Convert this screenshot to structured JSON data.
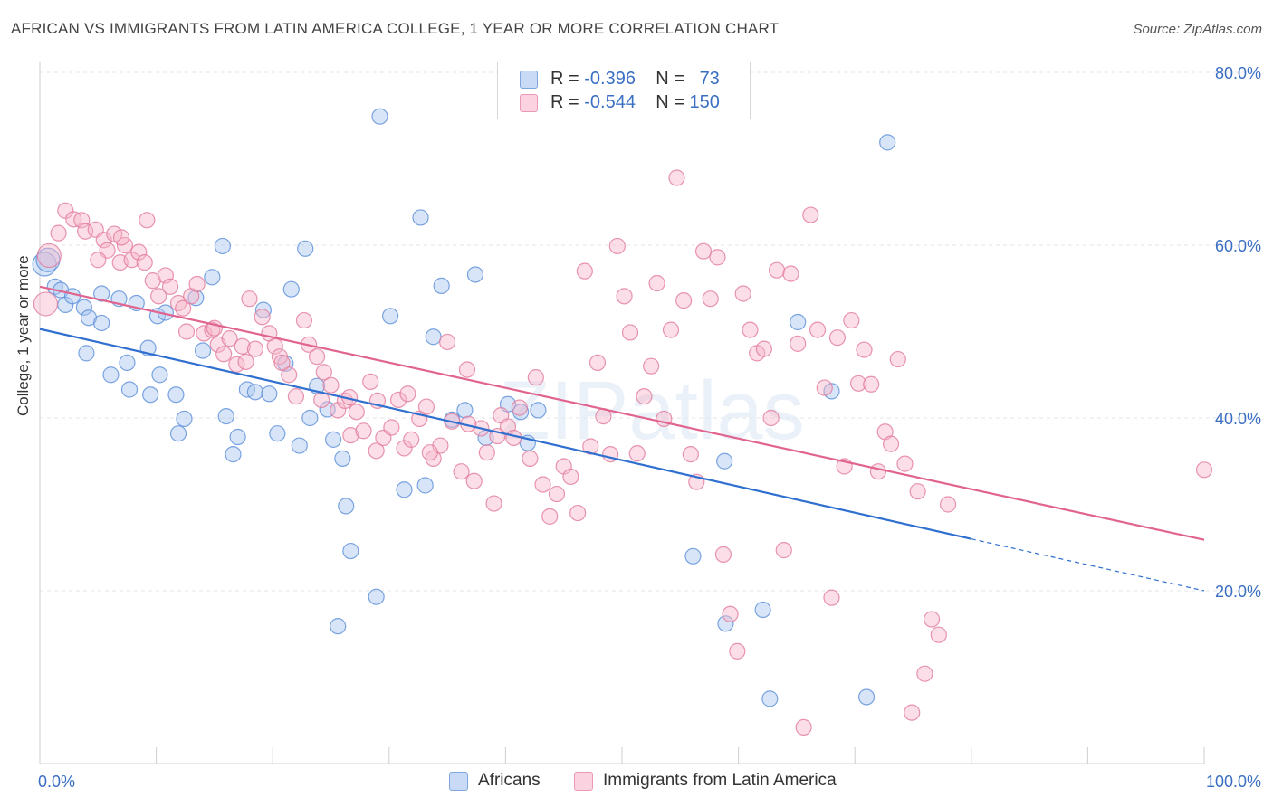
{
  "title": "AFRICAN VS IMMIGRANTS FROM LATIN AMERICA COLLEGE, 1 YEAR OR MORE CORRELATION CHART",
  "source": "Source: ZipAtlas.com",
  "watermark": "ZIPatlas",
  "legend": {
    "r_label": "R =",
    "n_label": "N =",
    "rows": [
      {
        "r": "-0.396",
        "n": "73",
        "color": "#a9c6ef"
      },
      {
        "r": "-0.544",
        "n": "150",
        "color": "#f6b5c9"
      }
    ]
  },
  "bottom_legend": [
    {
      "label": "Africans",
      "color": "#a9c6ef"
    },
    {
      "label": "Immigrants from Latin America",
      "color": "#f6b5c9"
    }
  ],
  "chart_data": {
    "type": "scatter",
    "xlabel": "",
    "ylabel": "College, 1 year or more",
    "xlim": [
      0,
      100
    ],
    "ylim": [
      0,
      80
    ],
    "x_tick_labels": [
      "0.0%",
      "100.0%"
    ],
    "y_tick_labels": [
      "20.0%",
      "40.0%",
      "60.0%",
      "80.0%"
    ],
    "y_ticks": [
      20,
      40,
      60,
      80
    ],
    "grid": true,
    "legend_position": "top-center",
    "series": [
      {
        "name": "Africans",
        "color": "#5b8fd9",
        "fill": "#a9c6ef",
        "trend": {
          "x0": 0,
          "y0": 50.3,
          "x1": 80,
          "y1": 26.0,
          "dash_to_x": 100,
          "dash_to_y": 20.0,
          "color": "#2f6fcf"
        },
        "points": [
          [
            0.4,
            57.8
          ],
          [
            0.7,
            58.3
          ],
          [
            1.3,
            55.2
          ],
          [
            1.8,
            54.8
          ],
          [
            2.2,
            53.1
          ],
          [
            2.8,
            54.1
          ],
          [
            3.8,
            52.8
          ],
          [
            4.2,
            51.6
          ],
          [
            5.3,
            51.0
          ],
          [
            6.8,
            53.8
          ],
          [
            8.3,
            53.3
          ],
          [
            9.3,
            48.1
          ],
          [
            10.1,
            51.8
          ],
          [
            10.3,
            45.0
          ],
          [
            10.8,
            52.2
          ],
          [
            11.7,
            42.7
          ],
          [
            12.4,
            39.9
          ],
          [
            11.9,
            38.2
          ],
          [
            13.4,
            53.9
          ],
          [
            14.0,
            47.8
          ],
          [
            14.8,
            56.3
          ],
          [
            15.7,
            59.9
          ],
          [
            16.0,
            40.2
          ],
          [
            16.6,
            35.8
          ],
          [
            17.0,
            37.8
          ],
          [
            17.8,
            43.3
          ],
          [
            18.5,
            43.0
          ],
          [
            19.2,
            52.5
          ],
          [
            19.7,
            42.8
          ],
          [
            20.4,
            38.2
          ],
          [
            21.1,
            46.3
          ],
          [
            21.6,
            54.9
          ],
          [
            22.3,
            36.8
          ],
          [
            22.8,
            59.6
          ],
          [
            23.2,
            40.0
          ],
          [
            23.8,
            43.7
          ],
          [
            24.7,
            41.0
          ],
          [
            25.2,
            37.5
          ],
          [
            25.6,
            15.9
          ],
          [
            26.0,
            35.3
          ],
          [
            26.3,
            29.8
          ],
          [
            26.7,
            24.6
          ],
          [
            28.9,
            19.3
          ],
          [
            29.2,
            74.9
          ],
          [
            30.1,
            51.8
          ],
          [
            31.3,
            31.7
          ],
          [
            32.7,
            63.2
          ],
          [
            33.1,
            32.2
          ],
          [
            33.8,
            49.4
          ],
          [
            34.5,
            55.3
          ],
          [
            35.4,
            39.8
          ],
          [
            36.5,
            40.9
          ],
          [
            37.4,
            56.6
          ],
          [
            38.3,
            37.7
          ],
          [
            40.2,
            41.6
          ],
          [
            41.3,
            40.7
          ],
          [
            41.9,
            37.1
          ],
          [
            42.8,
            40.9
          ],
          [
            5.3,
            54.4
          ],
          [
            7.5,
            46.4
          ],
          [
            9.5,
            42.7
          ],
          [
            6.1,
            45.0
          ],
          [
            7.7,
            43.3
          ],
          [
            4.0,
            47.5
          ],
          [
            56.1,
            24.0
          ],
          [
            58.9,
            16.2
          ],
          [
            58.8,
            35.0
          ],
          [
            62.1,
            17.8
          ],
          [
            62.7,
            7.5
          ],
          [
            65.1,
            51.1
          ],
          [
            68.0,
            43.1
          ],
          [
            71.0,
            7.7
          ],
          [
            72.8,
            71.9
          ]
        ]
      },
      {
        "name": "Immigrants from Latin America",
        "color": "#e27a9c",
        "fill": "#f6b5c9",
        "trend": {
          "x0": 0,
          "y0": 55.2,
          "x1": 100,
          "y1": 25.9,
          "color": "#e0648f"
        },
        "points": [
          [
            0.5,
            53.2
          ],
          [
            0.8,
            58.8
          ],
          [
            1.6,
            61.4
          ],
          [
            2.2,
            64.0
          ],
          [
            2.9,
            63.0
          ],
          [
            3.6,
            62.9
          ],
          [
            3.9,
            61.6
          ],
          [
            4.8,
            61.8
          ],
          [
            5.5,
            60.6
          ],
          [
            5.8,
            59.4
          ],
          [
            6.4,
            61.3
          ],
          [
            6.9,
            58.0
          ],
          [
            7.3,
            60.0
          ],
          [
            7.9,
            58.3
          ],
          [
            8.5,
            59.2
          ],
          [
            9.0,
            58.0
          ],
          [
            9.7,
            55.9
          ],
          [
            10.2,
            54.1
          ],
          [
            10.8,
            56.5
          ],
          [
            11.2,
            55.2
          ],
          [
            11.9,
            53.3
          ],
          [
            12.3,
            52.7
          ],
          [
            13.0,
            54.1
          ],
          [
            13.5,
            55.5
          ],
          [
            14.1,
            49.8
          ],
          [
            14.8,
            50.2
          ],
          [
            15.3,
            48.5
          ],
          [
            15.8,
            47.4
          ],
          [
            16.3,
            49.2
          ],
          [
            16.9,
            46.2
          ],
          [
            17.4,
            48.3
          ],
          [
            18.0,
            53.8
          ],
          [
            18.5,
            48.0
          ],
          [
            19.1,
            51.7
          ],
          [
            19.7,
            49.8
          ],
          [
            20.2,
            48.3
          ],
          [
            20.6,
            47.1
          ],
          [
            21.4,
            45.0
          ],
          [
            22.0,
            42.5
          ],
          [
            22.7,
            51.3
          ],
          [
            23.1,
            48.5
          ],
          [
            23.8,
            47.1
          ],
          [
            24.4,
            45.3
          ],
          [
            25.0,
            43.8
          ],
          [
            25.6,
            40.9
          ],
          [
            26.2,
            42.0
          ],
          [
            26.7,
            38.0
          ],
          [
            27.2,
            40.7
          ],
          [
            27.8,
            38.5
          ],
          [
            28.4,
            44.2
          ],
          [
            28.9,
            36.2
          ],
          [
            29.5,
            37.7
          ],
          [
            30.2,
            38.9
          ],
          [
            30.8,
            42.1
          ],
          [
            31.3,
            36.5
          ],
          [
            31.9,
            37.5
          ],
          [
            32.6,
            39.9
          ],
          [
            33.2,
            41.3
          ],
          [
            33.8,
            35.3
          ],
          [
            34.4,
            36.8
          ],
          [
            35.0,
            48.8
          ],
          [
            35.4,
            39.6
          ],
          [
            36.2,
            33.8
          ],
          [
            36.7,
            45.6
          ],
          [
            37.3,
            32.7
          ],
          [
            37.9,
            38.8
          ],
          [
            38.4,
            36.0
          ],
          [
            39.0,
            30.1
          ],
          [
            39.6,
            40.3
          ],
          [
            40.2,
            39.0
          ],
          [
            40.7,
            37.7
          ],
          [
            41.2,
            41.2
          ],
          [
            42.1,
            35.3
          ],
          [
            42.6,
            44.7
          ],
          [
            43.2,
            32.3
          ],
          [
            43.8,
            28.6
          ],
          [
            44.4,
            31.2
          ],
          [
            45.0,
            34.4
          ],
          [
            45.6,
            33.2
          ],
          [
            46.2,
            29.0
          ],
          [
            46.8,
            57.0
          ],
          [
            47.3,
            36.7
          ],
          [
            47.9,
            46.4
          ],
          [
            48.4,
            40.2
          ],
          [
            49.0,
            35.8
          ],
          [
            49.6,
            59.9
          ],
          [
            50.2,
            54.1
          ],
          [
            50.7,
            49.9
          ],
          [
            51.3,
            35.9
          ],
          [
            51.9,
            42.5
          ],
          [
            52.5,
            46.0
          ],
          [
            53.0,
            55.6
          ],
          [
            53.6,
            39.9
          ],
          [
            54.2,
            50.2
          ],
          [
            54.7,
            67.8
          ],
          [
            55.3,
            53.6
          ],
          [
            55.9,
            35.8
          ],
          [
            56.4,
            32.6
          ],
          [
            57.0,
            59.3
          ],
          [
            57.6,
            53.8
          ],
          [
            58.2,
            58.6
          ],
          [
            58.7,
            24.2
          ],
          [
            59.3,
            17.3
          ],
          [
            59.9,
            13.0
          ],
          [
            60.4,
            54.4
          ],
          [
            61.0,
            50.2
          ],
          [
            61.6,
            47.5
          ],
          [
            62.2,
            48.0
          ],
          [
            62.8,
            40.0
          ],
          [
            63.3,
            57.1
          ],
          [
            63.9,
            24.7
          ],
          [
            64.5,
            56.7
          ],
          [
            65.1,
            48.6
          ],
          [
            65.6,
            4.2
          ],
          [
            66.2,
            63.5
          ],
          [
            66.8,
            50.2
          ],
          [
            67.4,
            43.5
          ],
          [
            68.0,
            19.2
          ],
          [
            68.5,
            49.3
          ],
          [
            69.1,
            34.4
          ],
          [
            69.7,
            51.3
          ],
          [
            70.3,
            44.0
          ],
          [
            70.8,
            47.9
          ],
          [
            71.4,
            43.9
          ],
          [
            72.0,
            33.8
          ],
          [
            72.6,
            38.4
          ],
          [
            73.1,
            37.0
          ],
          [
            73.7,
            46.8
          ],
          [
            74.3,
            34.7
          ],
          [
            74.9,
            5.9
          ],
          [
            75.4,
            31.5
          ],
          [
            76.0,
            10.4
          ],
          [
            76.6,
            16.7
          ],
          [
            77.2,
            14.9
          ],
          [
            78.0,
            30.0
          ],
          [
            100.0,
            34.0
          ],
          [
            5.0,
            58.3
          ],
          [
            7.0,
            60.9
          ],
          [
            9.2,
            62.9
          ],
          [
            12.6,
            50.0
          ],
          [
            15.0,
            50.4
          ],
          [
            17.7,
            46.5
          ],
          [
            20.8,
            46.4
          ],
          [
            24.2,
            42.1
          ],
          [
            26.6,
            42.4
          ],
          [
            29.0,
            42.0
          ],
          [
            31.6,
            42.8
          ],
          [
            33.5,
            36.0
          ],
          [
            36.8,
            39.3
          ],
          [
            39.3,
            37.9
          ]
        ]
      }
    ]
  }
}
